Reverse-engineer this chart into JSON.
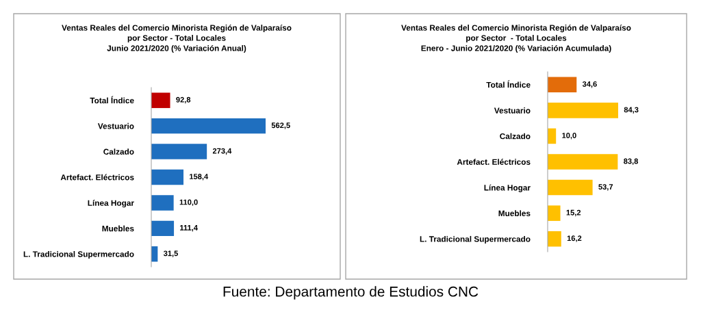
{
  "chart_data": [
    {
      "type": "bar",
      "orientation": "horizontal",
      "title": "Ventas Reales del Comercio Minorista Región de Valparaíso\npor Sector - Total Locales\nJunio 2021/2020 (% Variación Anual)",
      "categories": [
        "Total Índice",
        "Vestuario",
        "Calzado",
        "Artefact. Eléctricos",
        "Línea Hogar",
        "Muebles",
        "L. Tradicional Supermercado"
      ],
      "values": [
        92.8,
        562.5,
        273.4,
        158.4,
        110.0,
        111.4,
        31.5
      ],
      "value_labels": [
        "92,8",
        "562,5",
        "273,4",
        "158,4",
        "110,0",
        "111,4",
        "31,5"
      ],
      "colors": [
        "#c00000",
        "#1f6fbf",
        "#1f6fbf",
        "#1f6fbf",
        "#1f6fbf",
        "#1f6fbf",
        "#1f6fbf"
      ]
    },
    {
      "type": "bar",
      "orientation": "horizontal",
      "title": "Ventas Reales del Comercio Minorista Región de Valparaíso\npor Sector  - Total Locales\nEnero - Junio 2021/2020 (% Variación Acumulada)",
      "categories": [
        "Total Índice",
        "Vestuario",
        "Calzado",
        "Artefact. Eléctricos",
        "Línea Hogar",
        "Muebles",
        "L. Tradicional Supermercado"
      ],
      "values": [
        34.6,
        84.3,
        10.0,
        83.8,
        53.7,
        15.2,
        16.2
      ],
      "value_labels": [
        "34,6",
        "84,3",
        "10,0",
        "83,8",
        "53,7",
        "15,2",
        "16,2"
      ],
      "colors": [
        "#e36c0a",
        "#ffc000",
        "#ffc000",
        "#ffc000",
        "#ffc000",
        "#ffc000",
        "#ffc000"
      ],
      "annotations": [
        "Fuente: Departamento de Estudios CNC"
      ]
    }
  ]
}
